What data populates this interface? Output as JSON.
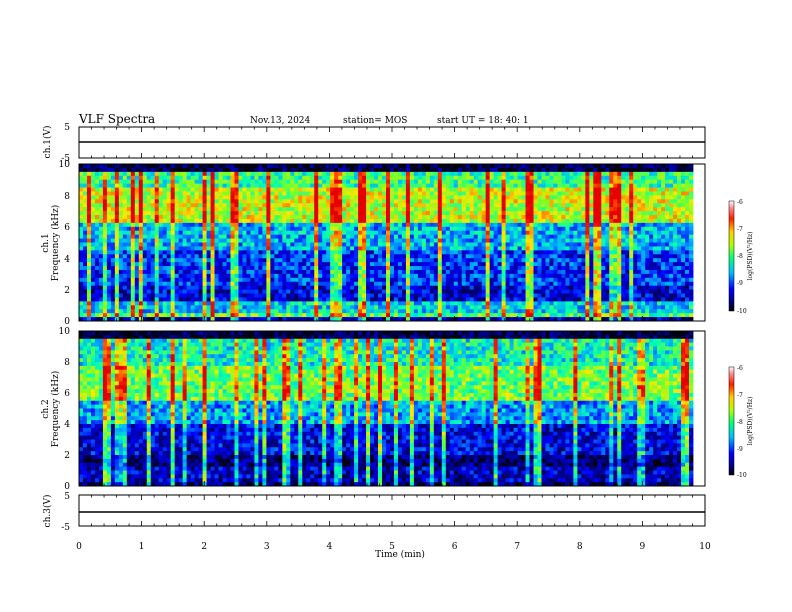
{
  "header": {
    "title": "VLF Spectra",
    "date": "Nov.13, 2024",
    "station": "station= MOS",
    "start_ut": "start  UT =   18: 40: 1"
  },
  "chart_data": [
    {
      "type": "line",
      "ylabel": "ch.1(V)",
      "yticks": [
        "5",
        "-5"
      ],
      "ylim": [
        -5,
        5
      ],
      "series": [
        {
          "values": [
            -1.5,
            -1.5
          ]
        }
      ],
      "grid": false
    },
    {
      "type": "heatmap",
      "ylabel_line1": "ch.1",
      "ylabel_line2": "Frequency (kHz)",
      "yticks": [
        "0",
        "2",
        "4",
        "6",
        "8",
        "10"
      ],
      "ylim": [
        0,
        10
      ],
      "colorbar": {
        "label": "log(PSD)(V²/Hz)",
        "ticks": [
          "-6",
          "-7",
          "-8",
          "-9",
          "-10"
        ],
        "range": [
          -10,
          -6
        ]
      },
      "description_bands_khz": [
        [
          0.3,
          1.0
        ],
        [
          6.5,
          9.5
        ]
      ]
    },
    {
      "type": "heatmap",
      "ylabel_line1": "ch.2",
      "ylabel_line2": "Frequency (kHz)",
      "yticks": [
        "0",
        "2",
        "4",
        "6",
        "8",
        "10"
      ],
      "ylim": [
        0,
        10
      ],
      "colorbar": {
        "label": "log(PSD)(V²/Hz)",
        "ticks": [
          "-6",
          "-7",
          "-8",
          "-9",
          "-10"
        ],
        "range": [
          -10,
          -6
        ]
      },
      "description_bands_khz": [
        [
          5.5,
          9.0
        ]
      ]
    },
    {
      "type": "line",
      "ylabel": "ch.3(V)",
      "yticks": [
        "5",
        "-5"
      ],
      "ylim": [
        -5,
        5
      ],
      "series": [
        {
          "values": [
            -1.5,
            -1.5
          ]
        }
      ],
      "grid": false
    }
  ],
  "xaxis": {
    "label": "Time (min)",
    "ticks": [
      "0",
      "1",
      "2",
      "3",
      "4",
      "5",
      "6",
      "7",
      "8",
      "9",
      "10"
    ],
    "xlim": [
      0,
      10
    ]
  },
  "colors": {
    "jet": [
      "#00007f",
      "#0000ff",
      "#007fff",
      "#00ffff",
      "#7fff7f",
      "#ffff00",
      "#ff7f00",
      "#ff0000",
      "#7f0000"
    ]
  }
}
